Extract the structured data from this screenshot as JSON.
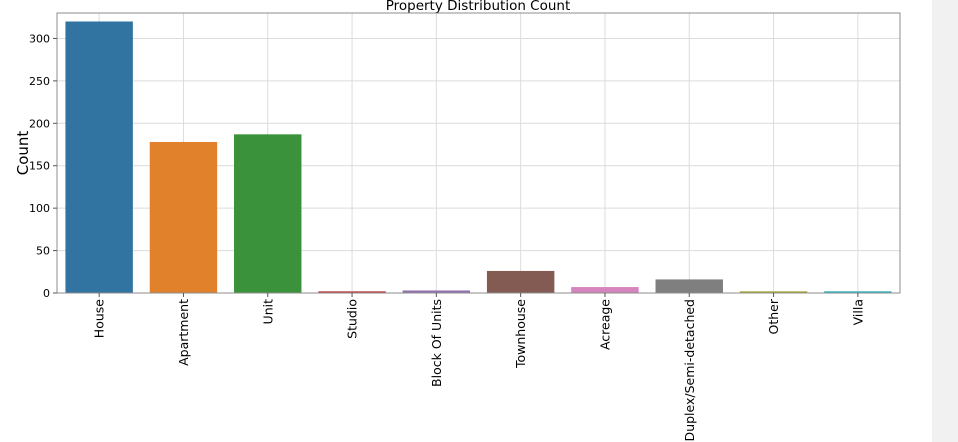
{
  "chart_data": {
    "type": "bar",
    "title": "Property Distribution Count",
    "xlabel": "",
    "ylabel": "Count",
    "categories": [
      "House",
      "Apartment",
      "Unit",
      "Studio",
      "Block Of Units",
      "Townhouse",
      "Acreage",
      "Duplex/Semi-detached",
      "Other",
      "Villa"
    ],
    "values": [
      320,
      178,
      187,
      2,
      3,
      26,
      7,
      16,
      2,
      2
    ],
    "colors": [
      "#3274a1",
      "#e1812c",
      "#3a923a",
      "#c03d3e",
      "#9372b2",
      "#845b53",
      "#d684bd",
      "#7f7f7f",
      "#a9aa35",
      "#2eb2c1"
    ],
    "ylim": [
      0,
      330
    ],
    "yticks": [
      0,
      50,
      100,
      150,
      200,
      250,
      300
    ],
    "grid": true,
    "legend": "none"
  }
}
